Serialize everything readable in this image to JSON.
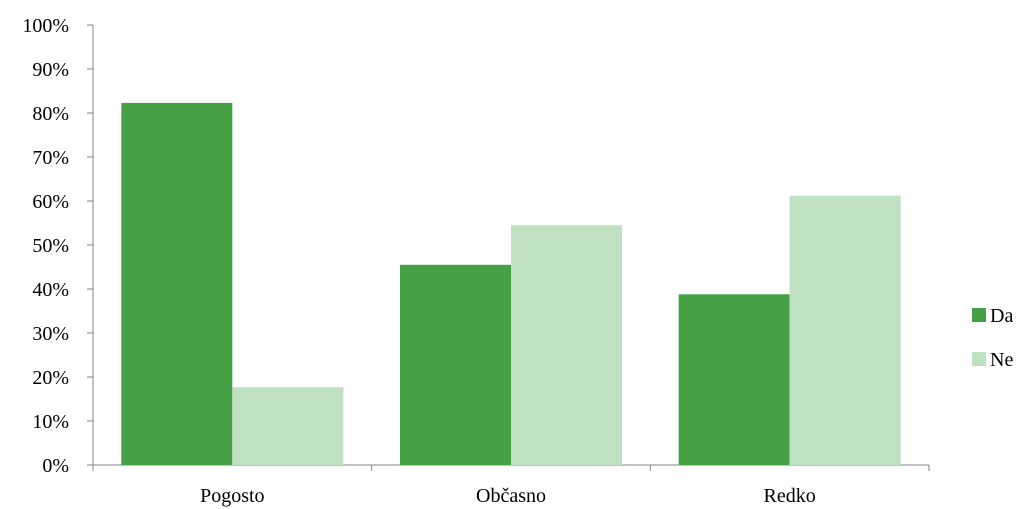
{
  "chart_data": {
    "type": "bar",
    "categories": [
      "Pogosto",
      "Občasno",
      "Redko"
    ],
    "series": [
      {
        "name": "Da",
        "values": [
          82.3,
          45.5,
          38.8
        ],
        "color": "#46a046"
      },
      {
        "name": "Ne",
        "values": [
          17.7,
          54.5,
          61.2
        ],
        "color": "#c0e0c2"
      }
    ],
    "ylim": [
      0,
      100
    ],
    "yticks": [
      0,
      10,
      20,
      30,
      40,
      50,
      60,
      70,
      80,
      90,
      100
    ],
    "y_unit": "%",
    "grid": false,
    "legend": "right"
  }
}
